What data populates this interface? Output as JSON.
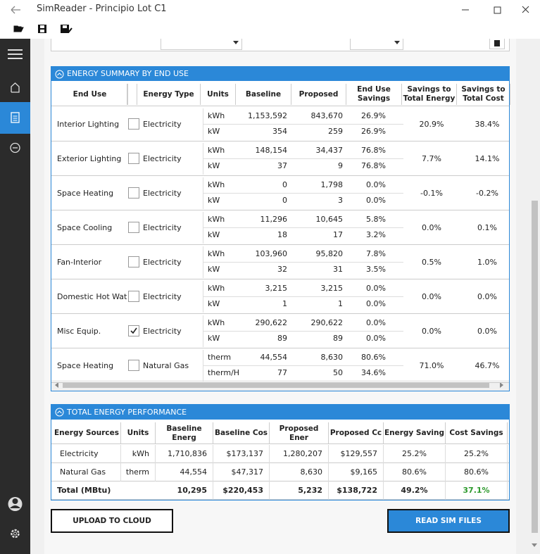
{
  "window": {
    "title": "SimReader - Principio Lot C1"
  },
  "end_use_summary": {
    "title": "ENERGY SUMMARY BY END USE",
    "headers": [
      "End Use",
      "Energy Type",
      "Units",
      "Baseline",
      "Proposed",
      "End Use Savings",
      "Savings to Total Energy",
      "Savings to Total Cost"
    ],
    "rows": [
      {
        "end_use": "Interior Lighting",
        "checked": false,
        "energy_type": "Electricity",
        "lines": [
          {
            "units": "kWh",
            "baseline": "1,153,592",
            "proposed": "843,670",
            "savings": "26.9%"
          },
          {
            "units": "kW",
            "baseline": "354",
            "proposed": "259",
            "savings": "26.9%"
          }
        ],
        "savings_total_energy": "20.9%",
        "savings_total_cost": "38.4%"
      },
      {
        "end_use": "Exterior Lighting",
        "checked": false,
        "energy_type": "Electricity",
        "lines": [
          {
            "units": "kWh",
            "baseline": "148,154",
            "proposed": "34,437",
            "savings": "76.8%"
          },
          {
            "units": "kW",
            "baseline": "37",
            "proposed": "9",
            "savings": "76.8%"
          }
        ],
        "savings_total_energy": "7.7%",
        "savings_total_cost": "14.1%"
      },
      {
        "end_use": "Space Heating",
        "checked": false,
        "energy_type": "Electricity",
        "lines": [
          {
            "units": "kWh",
            "baseline": "0",
            "proposed": "1,798",
            "savings": "0.0%"
          },
          {
            "units": "kW",
            "baseline": "0",
            "proposed": "3",
            "savings": "0.0%"
          }
        ],
        "savings_total_energy": "-0.1%",
        "savings_total_cost": "-0.2%"
      },
      {
        "end_use": "Space Cooling",
        "checked": false,
        "energy_type": "Electricity",
        "lines": [
          {
            "units": "kWh",
            "baseline": "11,296",
            "proposed": "10,645",
            "savings": "5.8%"
          },
          {
            "units": "kW",
            "baseline": "18",
            "proposed": "17",
            "savings": "3.2%"
          }
        ],
        "savings_total_energy": "0.0%",
        "savings_total_cost": "0.1%"
      },
      {
        "end_use": "Fan-Interior",
        "checked": false,
        "energy_type": "Electricity",
        "lines": [
          {
            "units": "kWh",
            "baseline": "103,960",
            "proposed": "95,820",
            "savings": "7.8%"
          },
          {
            "units": "kW",
            "baseline": "32",
            "proposed": "31",
            "savings": "3.5%"
          }
        ],
        "savings_total_energy": "0.5%",
        "savings_total_cost": "1.0%"
      },
      {
        "end_use": "Domestic Hot Water",
        "checked": false,
        "energy_type": "Electricity",
        "lines": [
          {
            "units": "kWh",
            "baseline": "3,215",
            "proposed": "3,215",
            "savings": "0.0%"
          },
          {
            "units": "kW",
            "baseline": "1",
            "proposed": "1",
            "savings": "0.0%"
          }
        ],
        "savings_total_energy": "0.0%",
        "savings_total_cost": "0.0%"
      },
      {
        "end_use": "Misc Equip.",
        "checked": true,
        "energy_type": "Electricity",
        "lines": [
          {
            "units": "kWh",
            "baseline": "290,622",
            "proposed": "290,622",
            "savings": "0.0%"
          },
          {
            "units": "kW",
            "baseline": "89",
            "proposed": "89",
            "savings": "0.0%"
          }
        ],
        "savings_total_energy": "0.0%",
        "savings_total_cost": "0.0%"
      },
      {
        "end_use": "Space Heating",
        "checked": false,
        "energy_type": "Natural Gas",
        "lines": [
          {
            "units": "therm",
            "baseline": "44,554",
            "proposed": "8,630",
            "savings": "80.6%"
          },
          {
            "units": "therm/Hr",
            "baseline": "77",
            "proposed": "50",
            "savings": "34.6%"
          }
        ],
        "savings_total_energy": "71.0%",
        "savings_total_cost": "46.7%"
      }
    ]
  },
  "total_performance": {
    "title": "TOTAL ENERGY PERFORMANCE",
    "headers": [
      "Energy Sources",
      "Units",
      "Baseline Energ",
      "Baseline Cos",
      "Proposed Ener",
      "Proposed Cc",
      "Energy Saving",
      "Cost Savings"
    ],
    "rows": [
      [
        "Electricity",
        "kWh",
        "1,710,836",
        "$173,137",
        "1,280,207",
        "$129,557",
        "25.2%",
        "25.2%"
      ],
      [
        "Natural Gas",
        "therm",
        "44,554",
        "$47,317",
        "8,630",
        "$9,165",
        "80.6%",
        "80.6%"
      ]
    ],
    "total": {
      "label": "Total (MBtu)",
      "values": [
        "10,295",
        "$220,453",
        "5,232",
        "$138,722",
        "49.2%",
        "37.1%"
      ]
    }
  },
  "buttons": {
    "upload": "UPLOAD TO CLOUD",
    "read": "READ SIM FILES"
  }
}
